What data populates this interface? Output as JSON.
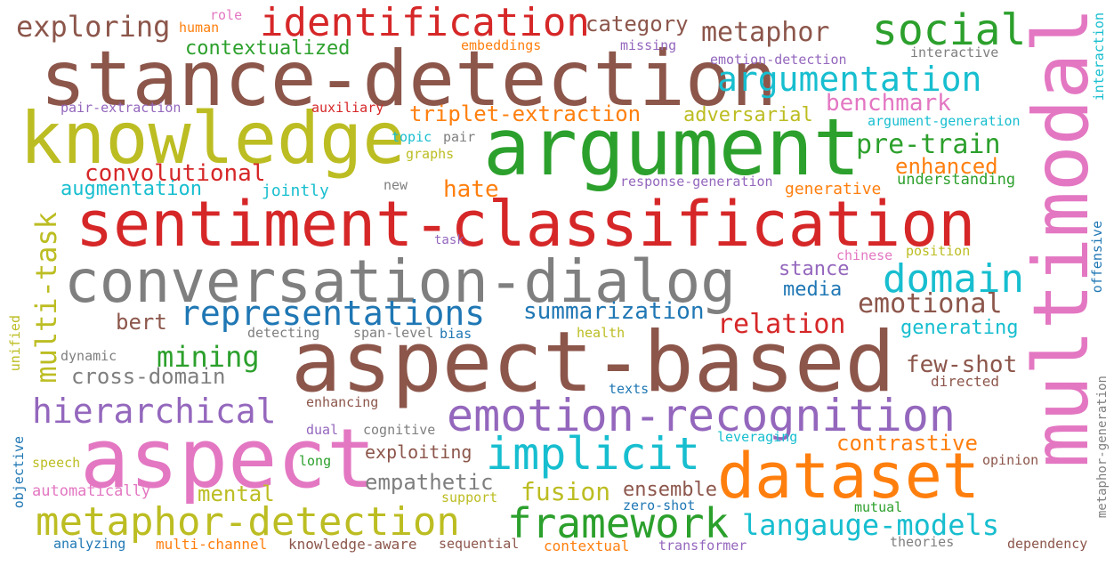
{
  "palette": {
    "brown": "#8c564b",
    "red": "#d62728",
    "olive": "#bcbd22",
    "green": "#2ca02c",
    "gray": "#7f7f7f",
    "pink": "#e377c2",
    "cyan": "#17becf",
    "orange": "#ff7f0e",
    "blue": "#1f77b4",
    "purple": "#9467bd"
  },
  "words": [
    {
      "text": "stance-detection",
      "color": "brown"
    },
    {
      "text": "knowledge",
      "color": "olive"
    },
    {
      "text": "argument",
      "color": "green"
    },
    {
      "text": "sentiment-classification",
      "color": "red"
    },
    {
      "text": "conversation-dialog",
      "color": "gray"
    },
    {
      "text": "aspect-based",
      "color": "brown"
    },
    {
      "text": "aspect",
      "color": "pink"
    },
    {
      "text": "multimodal",
      "color": "pink"
    },
    {
      "text": "dataset",
      "color": "orange"
    },
    {
      "text": "emotion-recognition",
      "color": "purple"
    },
    {
      "text": "metaphor-detection",
      "color": "olive"
    },
    {
      "text": "framework",
      "color": "green"
    },
    {
      "text": "identification",
      "color": "red"
    },
    {
      "text": "social",
      "color": "green"
    },
    {
      "text": "argumentation",
      "color": "cyan"
    },
    {
      "text": "representations",
      "color": "blue"
    },
    {
      "text": "implicit",
      "color": "cyan"
    },
    {
      "text": "hierarchical",
      "color": "purple"
    },
    {
      "text": "multi-task",
      "color": "olive"
    },
    {
      "text": "domain",
      "color": "cyan"
    },
    {
      "text": "exploring",
      "color": "brown"
    },
    {
      "text": "metaphor",
      "color": "brown"
    },
    {
      "text": "langauge-models",
      "color": "cyan"
    },
    {
      "text": "benchmark",
      "color": "pink"
    },
    {
      "text": "triplet-extraction",
      "color": "orange"
    },
    {
      "text": "pre-train",
      "color": "green"
    },
    {
      "text": "convolutional",
      "color": "red"
    },
    {
      "text": "relation",
      "color": "red"
    },
    {
      "text": "emotional",
      "color": "brown"
    },
    {
      "text": "mining",
      "color": "green"
    },
    {
      "text": "summarization",
      "color": "blue"
    },
    {
      "text": "fusion",
      "color": "olive"
    },
    {
      "text": "contrastive",
      "color": "orange"
    },
    {
      "text": "empathetic",
      "color": "gray"
    },
    {
      "text": "few-shot",
      "color": "brown"
    },
    {
      "text": "cross-domain",
      "color": "gray"
    },
    {
      "text": "category",
      "color": "brown"
    },
    {
      "text": "hate",
      "color": "orange"
    },
    {
      "text": "enhanced",
      "color": "orange"
    },
    {
      "text": "adversarial",
      "color": "olive"
    },
    {
      "text": "contextualized",
      "color": "green"
    },
    {
      "text": "augmentation",
      "color": "cyan"
    },
    {
      "text": "bert",
      "color": "brown"
    },
    {
      "text": "mental",
      "color": "olive"
    },
    {
      "text": "ensemble",
      "color": "brown"
    },
    {
      "text": "stance",
      "color": "purple"
    },
    {
      "text": "media",
      "color": "blue"
    },
    {
      "text": "generating",
      "color": "cyan"
    },
    {
      "text": "exploiting",
      "color": "brown"
    },
    {
      "text": "jointly",
      "color": "cyan"
    },
    {
      "text": "generative",
      "color": "orange"
    },
    {
      "text": "understanding",
      "color": "green"
    },
    {
      "text": "human",
      "color": "orange"
    },
    {
      "text": "role",
      "color": "pink"
    },
    {
      "text": "embeddings",
      "color": "orange"
    },
    {
      "text": "missing",
      "color": "purple"
    },
    {
      "text": "emotion-detection",
      "color": "purple"
    },
    {
      "text": "interactive",
      "color": "gray"
    },
    {
      "text": "interaction",
      "color": "cyan"
    },
    {
      "text": "pair-extraction",
      "color": "purple"
    },
    {
      "text": "auxiliary",
      "color": "red"
    },
    {
      "text": "argument-generation",
      "color": "cyan"
    },
    {
      "text": "topic",
      "color": "cyan"
    },
    {
      "text": "pair",
      "color": "gray"
    },
    {
      "text": "graphs",
      "color": "olive"
    },
    {
      "text": "new",
      "color": "gray"
    },
    {
      "text": "response-generation",
      "color": "purple"
    },
    {
      "text": "task",
      "color": "purple"
    },
    {
      "text": "chinese",
      "color": "pink"
    },
    {
      "text": "position",
      "color": "olive"
    },
    {
      "text": "offensive",
      "color": "blue"
    },
    {
      "text": "unified",
      "color": "olive"
    },
    {
      "text": "dynamic",
      "color": "gray"
    },
    {
      "text": "detecting",
      "color": "gray"
    },
    {
      "text": "span-level",
      "color": "gray"
    },
    {
      "text": "bias",
      "color": "blue"
    },
    {
      "text": "health",
      "color": "olive"
    },
    {
      "text": "directed",
      "color": "brown"
    },
    {
      "text": "texts",
      "color": "blue"
    },
    {
      "text": "enhancing",
      "color": "brown"
    },
    {
      "text": "dual",
      "color": "purple"
    },
    {
      "text": "cognitive",
      "color": "gray"
    },
    {
      "text": "leveraging",
      "color": "cyan"
    },
    {
      "text": "objective",
      "color": "blue"
    },
    {
      "text": "speech",
      "color": "olive"
    },
    {
      "text": "long",
      "color": "green"
    },
    {
      "text": "opinion",
      "color": "brown"
    },
    {
      "text": "metaphor-generation",
      "color": "gray"
    },
    {
      "text": "automatically",
      "color": "pink"
    },
    {
      "text": "support",
      "color": "olive"
    },
    {
      "text": "zero-shot",
      "color": "blue"
    },
    {
      "text": "mutual",
      "color": "green"
    },
    {
      "text": "analyzing",
      "color": "blue"
    },
    {
      "text": "multi-channel",
      "color": "orange"
    },
    {
      "text": "knowledge-aware",
      "color": "brown"
    },
    {
      "text": "sequential",
      "color": "brown"
    },
    {
      "text": "contextual",
      "color": "orange"
    },
    {
      "text": "transformer",
      "color": "purple"
    },
    {
      "text": "theories",
      "color": "gray"
    },
    {
      "text": "dependency",
      "color": "brown"
    }
  ]
}
